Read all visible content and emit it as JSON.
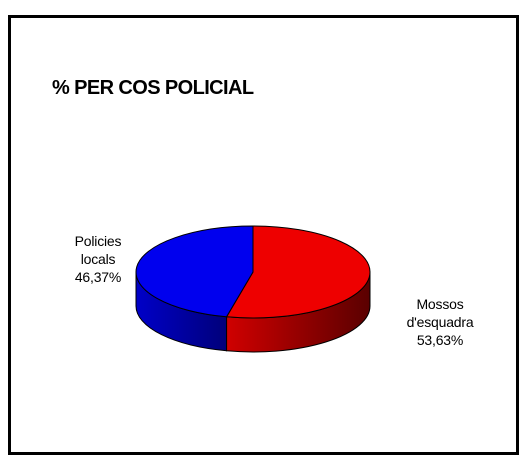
{
  "chart_data": {
    "type": "pie",
    "title": "% PER COS POLICIAL",
    "three_d": true,
    "slices": [
      {
        "label_lines": [
          "Mossos",
          "d'esquadra"
        ],
        "value": 53.63,
        "value_label": "53,63%",
        "color": "#ee0000",
        "color_dark": "#7a0000"
      },
      {
        "label_lines": [
          "Policies",
          "locals"
        ],
        "value": 46.37,
        "value_label": "46,37%",
        "color": "#0000ee",
        "color_dark": "#000066"
      }
    ],
    "legend": "none"
  }
}
